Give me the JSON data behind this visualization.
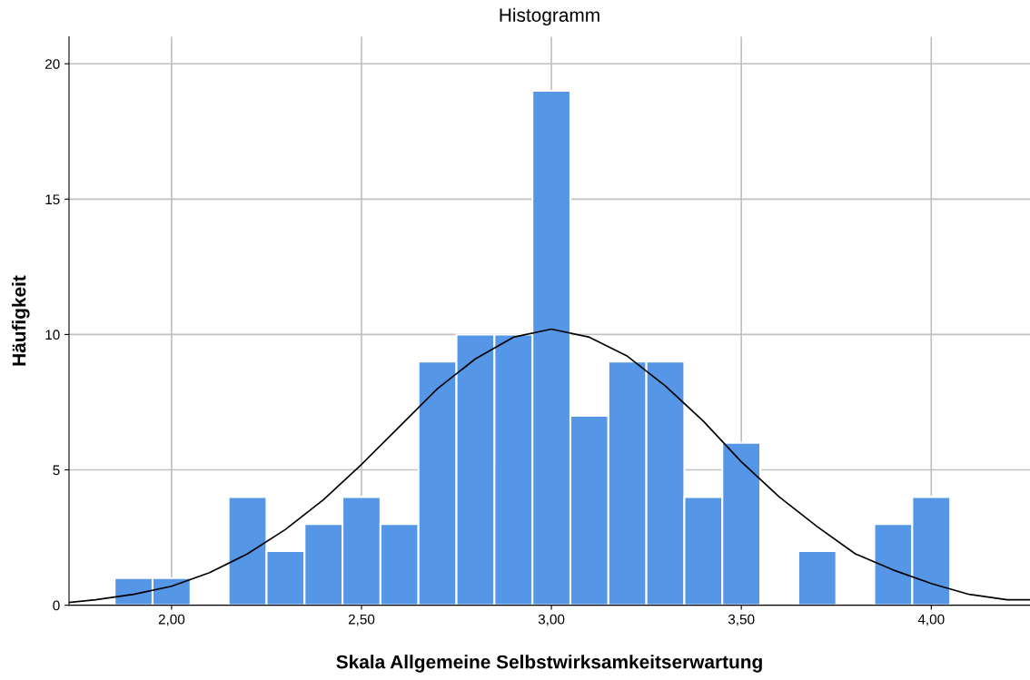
{
  "chart_data": {
    "type": "histogram",
    "title": "Histogramm",
    "xlabel": "Skala Allgemeine Selbstwirksamkeitserwartung",
    "ylabel": "Häufigkeit",
    "bins": [
      1.85,
      1.95,
      2.05,
      2.15,
      2.25,
      2.35,
      2.45,
      2.55,
      2.65,
      2.75,
      2.85,
      2.95,
      3.05,
      3.15,
      3.25,
      3.35,
      3.45,
      3.55,
      3.65,
      3.75,
      3.85,
      3.95,
      4.05
    ],
    "values": [
      1,
      1,
      0,
      4,
      2,
      3,
      4,
      3,
      9,
      10,
      10,
      19,
      7,
      9,
      9,
      4,
      6,
      0,
      2,
      0,
      3,
      4
    ],
    "color": "#5596e6",
    "series": [
      {
        "type": "line",
        "color": "#000000",
        "x": [
          1.73,
          1.8,
          1.9,
          2.0,
          2.1,
          2.2,
          2.3,
          2.4,
          2.5,
          2.6,
          2.7,
          2.8,
          2.9,
          3.0,
          3.1,
          3.2,
          3.3,
          3.4,
          3.5,
          3.6,
          3.7,
          3.8,
          3.9,
          4.0,
          4.1,
          4.2,
          4.26
        ],
        "values": [
          0.1,
          0.2,
          0.4,
          0.7,
          1.2,
          1.9,
          2.8,
          3.9,
          5.2,
          6.6,
          8.0,
          9.1,
          9.9,
          10.2,
          9.9,
          9.2,
          8.1,
          6.8,
          5.3,
          4.0,
          2.9,
          1.9,
          1.3,
          0.8,
          0.4,
          0.2,
          0.2
        ]
      }
    ],
    "xlim": [
      1.73,
      4.26
    ],
    "ylim": [
      0,
      21
    ],
    "xticks": [
      {
        "value": 2,
        "label": "2,00"
      },
      {
        "value": 2.5,
        "label": "2,50"
      },
      {
        "value": 3,
        "label": "3,00"
      },
      {
        "value": 3.5,
        "label": "3,50"
      },
      {
        "value": 4,
        "label": "4,00"
      }
    ],
    "yticks": [
      0,
      5,
      10,
      15,
      20
    ],
    "grid": true
  }
}
